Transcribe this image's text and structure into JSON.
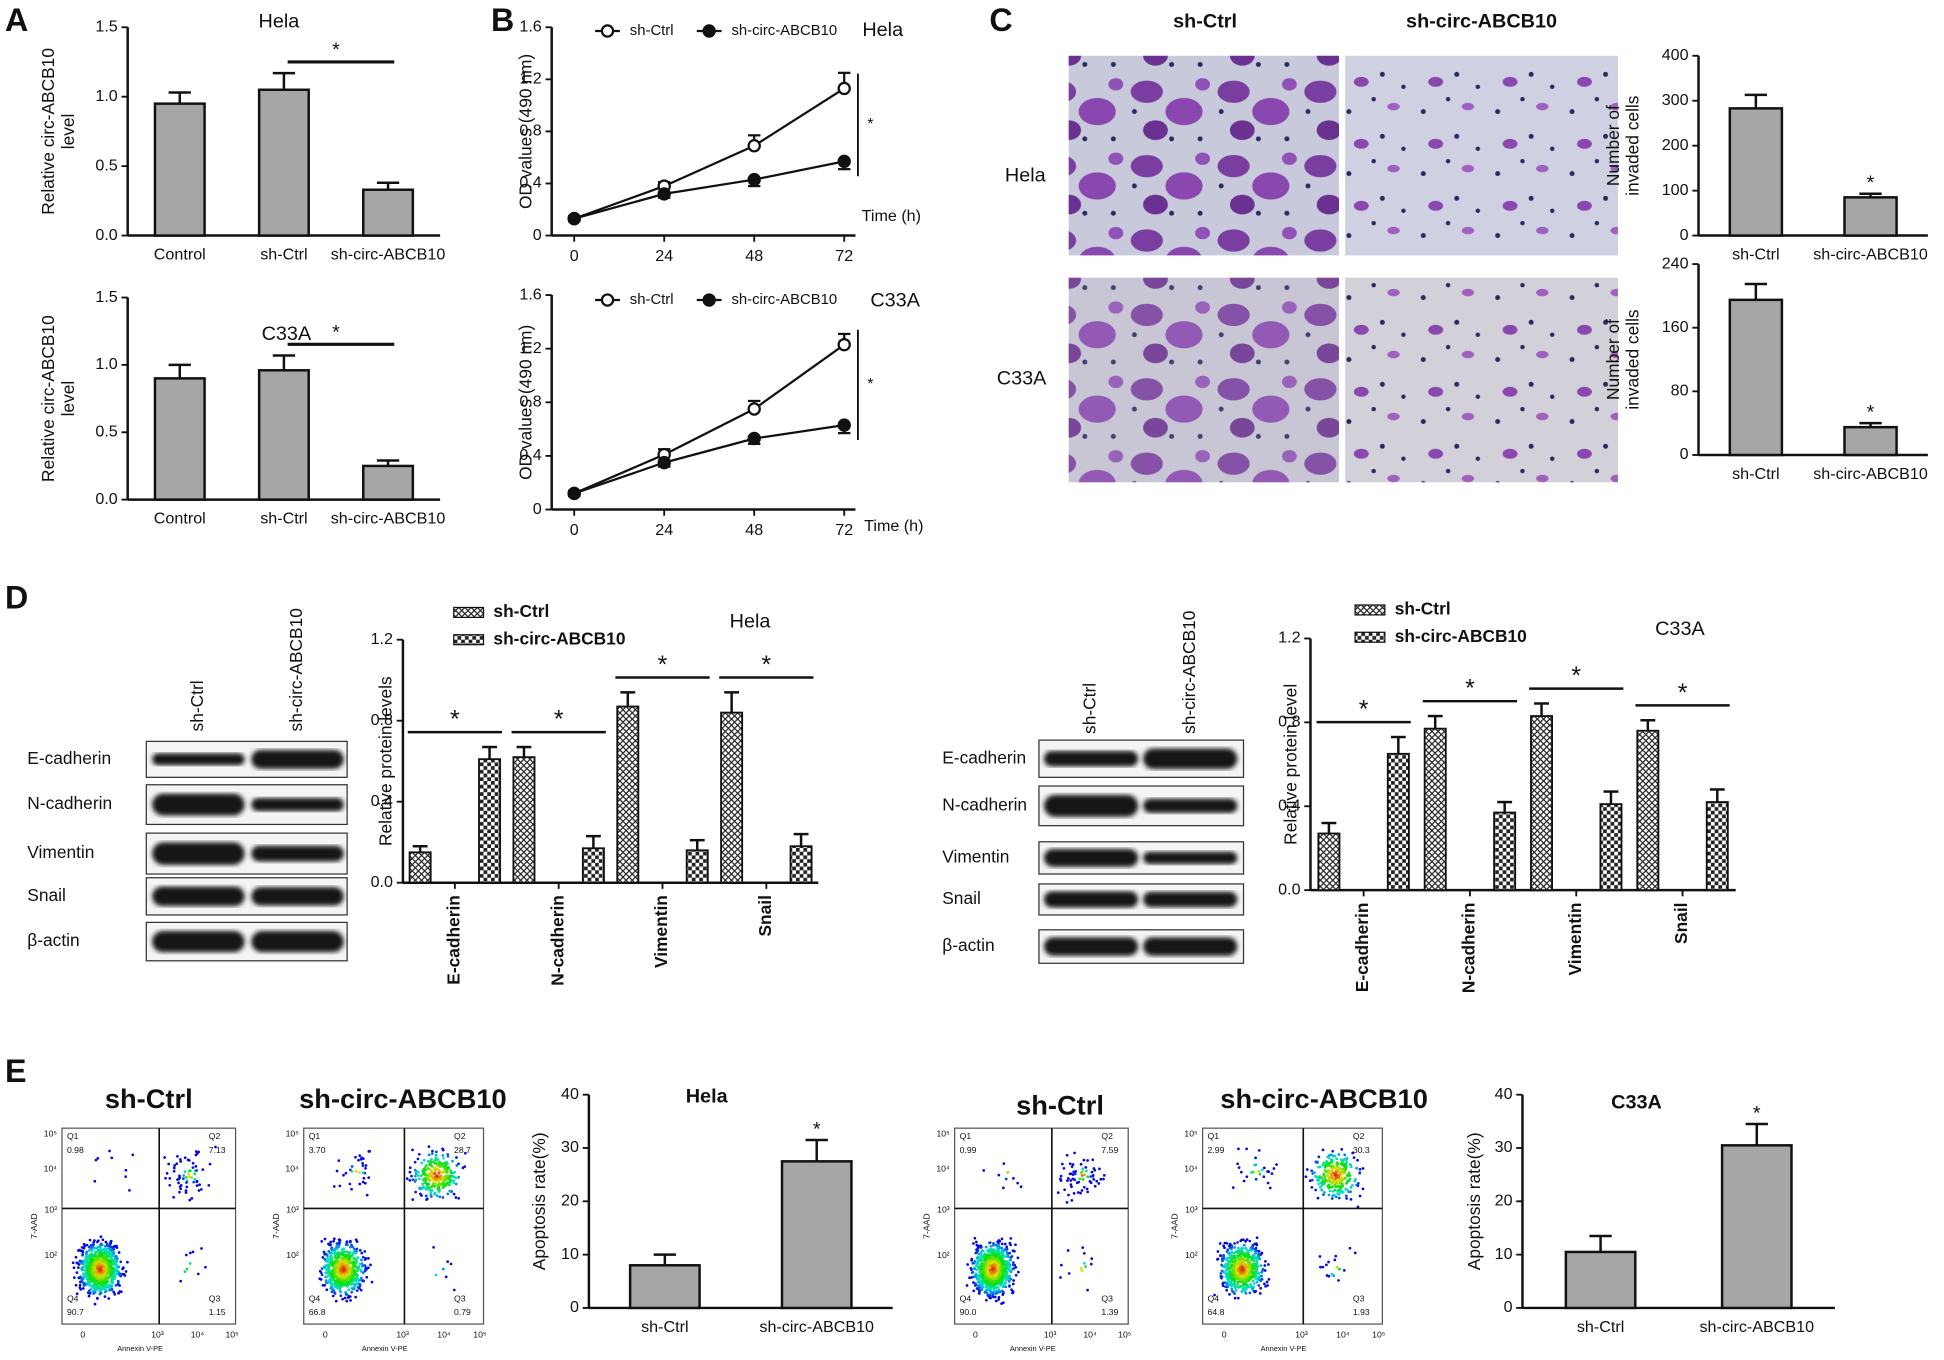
{
  "panel_labels": [
    "A",
    "B",
    "C",
    "D",
    "E"
  ],
  "micrographs": {
    "columns": [
      "sh-Ctrl",
      "sh-circ-ABCB10"
    ],
    "rows": [
      "Hela",
      "C33A"
    ]
  },
  "blots": [
    {
      "columns": [
        "sh-Ctrl",
        "sh-circ-ABCB10"
      ],
      "rows": [
        "E-cadherin",
        "N-cadherin",
        "Vimentin",
        "Snail",
        "β-actin"
      ]
    },
    {
      "columns": [
        "sh-Ctrl",
        "sh-circ-ABCB10"
      ],
      "rows": [
        "E-cadherin",
        "N-cadherin",
        "Vimentin",
        "Snail",
        "β-actin"
      ]
    }
  ],
  "chart_data": [
    {
      "type": "bar",
      "title": "Hela",
      "ylabel": [
        "Relative circ-ABCB10",
        "level"
      ],
      "categories": [
        "Control",
        "sh-Ctrl",
        "sh-circ-ABCB10"
      ],
      "values": [
        0.95,
        1.05,
        0.33
      ],
      "errors": [
        0.08,
        0.12,
        0.05
      ],
      "color": "#a6a6a6",
      "ylim": [
        0,
        1.5
      ],
      "yticks": [
        {
          "value": 0,
          "label": "0.0"
        },
        0.5,
        {
          "value": 1,
          "label": "1.0"
        },
        1.5
      ],
      "annotation": "*"
    },
    {
      "type": "bar",
      "title": "C33A",
      "ylabel": [
        "Relative circ-ABCB10",
        "level"
      ],
      "categories": [
        "Control",
        "sh-Ctrl",
        "sh-circ-ABCB10"
      ],
      "values": [
        0.9,
        0.96,
        0.25
      ],
      "errors": [
        0.1,
        0.11,
        0.04
      ],
      "color": "#a6a6a6",
      "ylim": [
        0,
        1.5
      ],
      "yticks": [
        {
          "value": 0,
          "label": "0.0"
        },
        0.5,
        {
          "value": 1,
          "label": "1.0"
        },
        1.5
      ],
      "annotation": "*"
    },
    {
      "type": "line",
      "title": "Hela",
      "ylabel": [
        "OD values (490 nm)"
      ],
      "xlabel": "Time (h)",
      "x": [
        0,
        24,
        48,
        72
      ],
      "series": [
        {
          "name": "sh-Ctrl",
          "color": "#111111",
          "marker": "open",
          "values": [
            0.13,
            0.38,
            0.69,
            1.13
          ],
          "errors": [
            0.02,
            0.03,
            0.08,
            0.12
          ]
        },
        {
          "name": "sh-circ-ABCB10",
          "color": "#111111",
          "marker": "filled",
          "values": [
            0.13,
            0.32,
            0.43,
            0.57
          ],
          "errors": [
            0.02,
            0.03,
            0.05,
            0.06
          ]
        }
      ],
      "xlim": [
        -6,
        75
      ],
      "xticks": [
        0,
        24,
        48,
        72
      ],
      "ylim": [
        0,
        1.6
      ],
      "yticks": [
        0,
        0.4,
        0.8,
        1.2,
        1.6
      ],
      "annotation": "*"
    },
    {
      "type": "line",
      "title": "C33A",
      "ylabel": [
        "OD values (490 nm)"
      ],
      "xlabel": "Time (h)",
      "x": [
        0,
        24,
        48,
        72
      ],
      "series": [
        {
          "name": "sh-Ctrl",
          "color": "#111111",
          "marker": "open",
          "values": [
            0.12,
            0.41,
            0.75,
            1.23
          ],
          "errors": [
            0.02,
            0.04,
            0.06,
            0.08
          ]
        },
        {
          "name": "sh-circ-ABCB10",
          "color": "#111111",
          "marker": "filled",
          "values": [
            0.12,
            0.35,
            0.53,
            0.63
          ],
          "errors": [
            0.02,
            0.03,
            0.04,
            0.06
          ]
        }
      ],
      "xlim": [
        -6,
        75
      ],
      "xticks": [
        0,
        24,
        48,
        72
      ],
      "ylim": [
        0,
        1.6
      ],
      "yticks": [
        0,
        0.4,
        0.8,
        1.2,
        1.6
      ],
      "annotation": "*"
    },
    {
      "type": "bar",
      "ylabel": [
        "Number of",
        "invaded cells"
      ],
      "categories": [
        "sh-Ctrl",
        "sh-circ-ABCB10"
      ],
      "values": [
        283,
        85
      ],
      "errors": [
        30,
        8
      ],
      "color": "#a6a6a6",
      "ylim": [
        0,
        400
      ],
      "yticks": [
        0,
        100,
        200,
        300,
        400
      ],
      "annotation": "*"
    },
    {
      "type": "bar",
      "ylabel": [
        "Number of",
        "invaded cells"
      ],
      "categories": [
        "sh-Ctrl",
        "sh-circ-ABCB10"
      ],
      "values": [
        195,
        35
      ],
      "errors": [
        20,
        5
      ],
      "color": "#a6a6a6",
      "ylim": [
        0,
        240
      ],
      "yticks": [
        0,
        80,
        160,
        240
      ],
      "annotation": "*"
    },
    {
      "type": "grouped_bar",
      "title": "Hela",
      "ylabel": [
        "Relative protein levels"
      ],
      "categories": [
        "E-cadherin",
        "N-cadherin",
        "Vimentin",
        "Snail"
      ],
      "series": [
        {
          "name": "sh-Ctrl",
          "pattern": "hatch",
          "values": [
            0.15,
            0.62,
            0.87,
            0.84
          ],
          "errors": [
            0.03,
            0.05,
            0.07,
            0.1
          ]
        },
        {
          "name": "sh-circ-ABCB10",
          "pattern": "checker",
          "values": [
            0.61,
            0.17,
            0.16,
            0.18
          ],
          "errors": [
            0.06,
            0.06,
            0.05,
            0.06
          ]
        }
      ],
      "ylim": [
        0,
        1.2
      ],
      "yticks": [
        {
          "value": 0,
          "label": "0.0"
        },
        0.4,
        0.8,
        1.2
      ],
      "annotations": [
        "*",
        "*",
        "*",
        "*"
      ]
    },
    {
      "type": "grouped_bar",
      "title": "C33A",
      "ylabel": [
        "Relative protein level"
      ],
      "categories": [
        "E-cadherin",
        "N-cadherin",
        "Vimentin",
        "Snail"
      ],
      "series": [
        {
          "name": "sh-Ctrl",
          "pattern": "hatch",
          "values": [
            0.27,
            0.77,
            0.83,
            0.76
          ],
          "errors": [
            0.05,
            0.06,
            0.06,
            0.05
          ]
        },
        {
          "name": "sh-circ-ABCB10",
          "pattern": "checker",
          "values": [
            0.65,
            0.37,
            0.41,
            0.42
          ],
          "errors": [
            0.08,
            0.05,
            0.06,
            0.06
          ]
        }
      ],
      "ylim": [
        0,
        1.2
      ],
      "yticks": [
        {
          "value": 0,
          "label": "0.0"
        },
        0.4,
        0.8,
        1.2
      ],
      "annotations": [
        "*",
        "*",
        "*",
        "*"
      ]
    },
    {
      "type": "flow_cytometry",
      "title": "sh-Ctrl",
      "ylabel": "7-AAD",
      "xlabel": "Annexin V-PE",
      "xtick_labels": [
        "0",
        "10³",
        "10⁴",
        "10⁵"
      ],
      "ytick_labels": [
        "10²",
        "10³",
        "10⁴",
        "10⁵"
      ],
      "quadrants": [
        {
          "name": "Q1",
          "value": 0.98
        },
        {
          "name": "Q2",
          "value": 7.13
        },
        {
          "name": "Q3",
          "value": 1.15
        },
        {
          "name": "Q4",
          "value": 90.7
        }
      ]
    },
    {
      "type": "flow_cytometry",
      "title": "sh-circ-ABCB10",
      "ylabel": "7-AAD",
      "xlabel": "Annexin V-PE",
      "xtick_labels": [
        "0",
        "10³",
        "10⁴",
        "10⁵"
      ],
      "ytick_labels": [
        "10²",
        "10³",
        "10⁴",
        "10⁵"
      ],
      "quadrants": [
        {
          "name": "Q1",
          "value": 3.7,
          "label": "3.70"
        },
        {
          "name": "Q2",
          "value": 28.7
        },
        {
          "name": "Q3",
          "value": 0.79
        },
        {
          "name": "Q4",
          "value": 66.8
        }
      ]
    },
    {
      "type": "bar",
      "title": "Hela",
      "ylabel": [
        "Apoptosis rate(%)"
      ],
      "categories": [
        "sh-Ctrl",
        "sh-circ-ABCB10"
      ],
      "values": [
        8,
        27.5
      ],
      "errors": [
        2,
        4
      ],
      "color": "#a6a6a6",
      "ylim": [
        0,
        40
      ],
      "yticks": [
        0,
        10,
        20,
        30,
        40
      ],
      "annotation": "*"
    },
    {
      "type": "flow_cytometry",
      "title": "sh-Ctrl",
      "ylabel": "7-AAD",
      "xlabel": "Annexin V-PE",
      "xtick_labels": [
        "0",
        "10³",
        "10⁴",
        "10⁵"
      ],
      "ytick_labels": [
        "10²",
        "10³",
        "10⁴",
        "10⁵"
      ],
      "quadrants": [
        {
          "name": "Q1",
          "value": 0.99
        },
        {
          "name": "Q2",
          "value": 7.59
        },
        {
          "name": "Q3",
          "value": 1.39
        },
        {
          "name": "Q4",
          "value": 90,
          "label": "90.0"
        }
      ]
    },
    {
      "type": "flow_cytometry",
      "title": "sh-circ-ABCB10",
      "ylabel": "7-AAD",
      "xlabel": "Annexin V-PE",
      "xtick_labels": [
        "0",
        "10³",
        "10⁴",
        "10⁵"
      ],
      "ytick_labels": [
        "10²",
        "10³",
        "10⁴",
        "10⁵"
      ],
      "quadrants": [
        {
          "name": "Q1",
          "value": 2.99
        },
        {
          "name": "Q2",
          "value": 30.3
        },
        {
          "name": "Q3",
          "value": 1.93
        },
        {
          "name": "Q4",
          "value": 64.8
        }
      ]
    },
    {
      "type": "bar",
      "title": "C33A",
      "ylabel": [
        "Apoptosis rate(%)"
      ],
      "categories": [
        "sh-Ctrl",
        "sh-circ-ABCB10"
      ],
      "values": [
        10.5,
        30.5
      ],
      "errors": [
        3,
        4
      ],
      "color": "#a6a6a6",
      "ylim": [
        0,
        40
      ],
      "yticks": [
        0,
        10,
        20,
        30,
        40
      ],
      "annotation": "*"
    }
  ]
}
